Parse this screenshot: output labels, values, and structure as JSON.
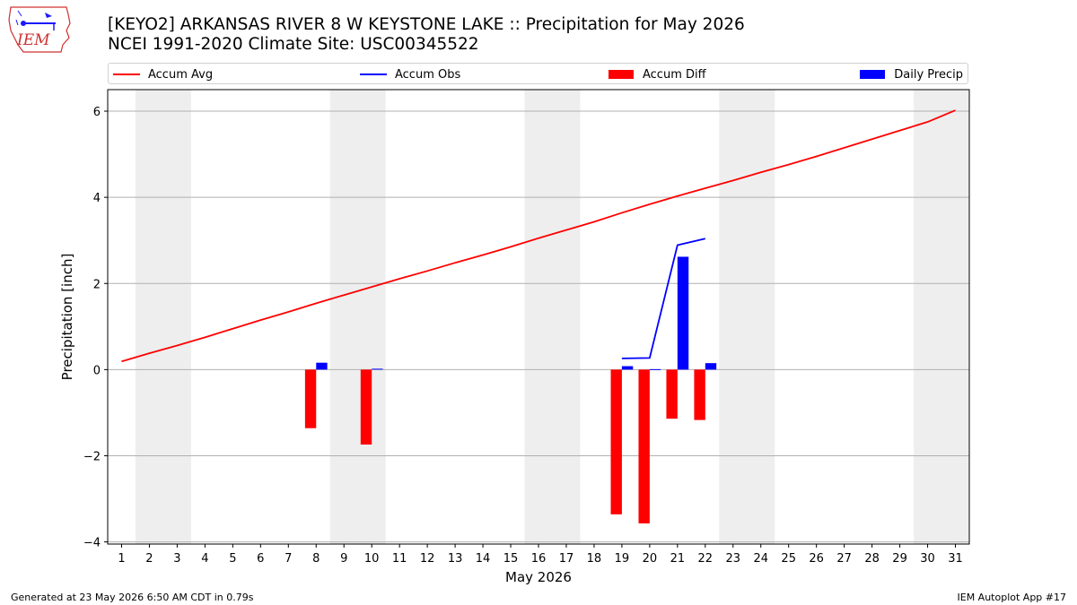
{
  "logo": {
    "text": "IEM",
    "icon": "iem-iowa-logo"
  },
  "header": {
    "title_line1": "[KEYO2] ARKANSAS RIVER 8 W KEYSTONE LAKE :: Precipitation for May 2026",
    "title_line2": "NCEI 1991-2020 Climate Site: USC00345522"
  },
  "legend": [
    {
      "label": "Accum Avg",
      "kind": "line",
      "color": "#ff0000"
    },
    {
      "label": "Accum Obs",
      "kind": "line",
      "color": "#0000ff"
    },
    {
      "label": "Accum Diff",
      "kind": "patch",
      "color": "#ff0000"
    },
    {
      "label": "Daily Precip",
      "kind": "patch",
      "color": "#0000ff"
    }
  ],
  "footer": {
    "left": "Generated at 23 May 2026 6:50 AM CDT in 0.79s",
    "right": "IEM Autoplot App #17"
  },
  "chart_data": {
    "type": "bar",
    "title": "[KEYO2] ARKANSAS RIVER 8 W KEYSTONE LAKE :: Precipitation for May 2026",
    "subtitle": "NCEI 1991-2020 Climate Site: USC00345522",
    "xlabel": "May 2026",
    "ylabel": "Precipitation [inch]",
    "x": [
      1,
      2,
      3,
      4,
      5,
      6,
      7,
      8,
      9,
      10,
      11,
      12,
      13,
      14,
      15,
      16,
      17,
      18,
      19,
      20,
      21,
      22,
      23,
      24,
      25,
      26,
      27,
      28,
      29,
      30,
      31
    ],
    "xlim": [
      0.5,
      31.5
    ],
    "ylim": [
      -4.05,
      6.5
    ],
    "yticks": [
      -4,
      -2,
      0,
      2,
      4,
      6
    ],
    "ytick_labels": [
      "−4",
      "−2",
      "0",
      "2",
      "4",
      "6"
    ],
    "grid": "horizontal",
    "legend_position": "top",
    "weekend_shading": [
      [
        1.5,
        3.5
      ],
      [
        8.5,
        10.5
      ],
      [
        15.5,
        17.5
      ],
      [
        22.5,
        24.5
      ],
      [
        29.5,
        31.5
      ]
    ],
    "shade_color": "#eeeeee",
    "series": [
      {
        "name": "Accum Avg",
        "kind": "line",
        "color": "#ff0000",
        "values": [
          0.19,
          0.38,
          0.56,
          0.75,
          0.95,
          1.15,
          1.34,
          1.54,
          1.73,
          1.92,
          2.11,
          2.29,
          2.48,
          2.66,
          2.85,
          3.05,
          3.24,
          3.43,
          3.64,
          3.84,
          4.03,
          4.21,
          4.39,
          4.58,
          4.76,
          4.95,
          5.15,
          5.35,
          5.55,
          5.75,
          6.02
        ]
      },
      {
        "name": "Accum Obs",
        "kind": "line",
        "color": "#0000ff",
        "x": [
          19,
          20,
          21,
          22
        ],
        "values": [
          0.26,
          0.27,
          2.89,
          3.04
        ]
      },
      {
        "name": "Accum Diff",
        "kind": "bar",
        "color": "#ff0000",
        "x": [
          8,
          10,
          19,
          20,
          21,
          22
        ],
        "values": [
          -1.36,
          -1.74,
          -3.36,
          -3.57,
          -1.14,
          -1.17
        ]
      },
      {
        "name": "Daily Precip",
        "kind": "bar",
        "color": "#0000ff",
        "x": [
          8,
          10,
          19,
          20,
          21,
          22
        ],
        "values": [
          0.16,
          0.02,
          0.08,
          0.01,
          2.62,
          0.15
        ]
      }
    ]
  }
}
